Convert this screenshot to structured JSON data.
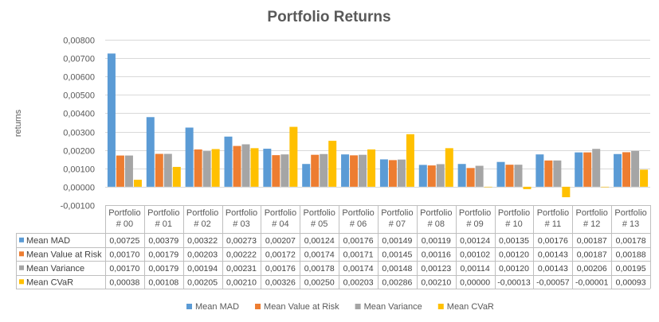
{
  "chart_data": {
    "type": "bar",
    "title": "Portfolio Returns",
    "ylabel": "returns",
    "ylim": [
      -0.001,
      0.008
    ],
    "ystep": 0.001,
    "yticks": [
      "-0,00100",
      "0,00000",
      "0,00100",
      "0,00200",
      "0,00300",
      "0,00400",
      "0,00500",
      "0,00600",
      "0,00700",
      "0,00800"
    ],
    "grid": true,
    "legend_position": "bottom",
    "has_data_table": true,
    "categories": [
      [
        "Portfolio",
        "# 00"
      ],
      [
        "Portfolio",
        "# 01"
      ],
      [
        "Portfolio",
        "# 02"
      ],
      [
        "Portfolio",
        "# 03"
      ],
      [
        "Portfolio",
        "# 04"
      ],
      [
        "Portfolio",
        "# 05"
      ],
      [
        "Portfolio",
        "# 06"
      ],
      [
        "Portfolio",
        "# 07"
      ],
      [
        "Portfolio",
        "# 08"
      ],
      [
        "Portfolio",
        "# 09"
      ],
      [
        "Portfolio",
        "# 10"
      ],
      [
        "Portfolio",
        "# 11"
      ],
      [
        "Portfolio",
        "# 12"
      ],
      [
        "Portfolio",
        "# 13"
      ]
    ],
    "series": [
      {
        "name": "Mean MAD",
        "color": "#5B9BD5",
        "values": [
          0.00725,
          0.00379,
          0.00322,
          0.00273,
          0.00207,
          0.00124,
          0.00176,
          0.00149,
          0.00119,
          0.00124,
          0.00135,
          0.00176,
          0.00187,
          0.00178
        ],
        "labels": [
          "0,00725",
          "0,00379",
          "0,00322",
          "0,00273",
          "0,00207",
          "0,00124",
          "0,00176",
          "0,00149",
          "0,00119",
          "0,00124",
          "0,00135",
          "0,00176",
          "0,00187",
          "0,00178"
        ]
      },
      {
        "name": "Mean Value at Risk",
        "color": "#ED7D31",
        "values": [
          0.0017,
          0.00179,
          0.00203,
          0.00222,
          0.00172,
          0.00174,
          0.00171,
          0.00145,
          0.00116,
          0.00102,
          0.0012,
          0.00143,
          0.00187,
          0.00188
        ],
        "labels": [
          "0,00170",
          "0,00179",
          "0,00203",
          "0,00222",
          "0,00172",
          "0,00174",
          "0,00171",
          "0,00145",
          "0,00116",
          "0,00102",
          "0,00120",
          "0,00143",
          "0,00187",
          "0,00188"
        ]
      },
      {
        "name": "Mean Variance",
        "color": "#A5A5A5",
        "values": [
          0.0017,
          0.00179,
          0.00194,
          0.00231,
          0.00176,
          0.00178,
          0.00174,
          0.00148,
          0.00123,
          0.00114,
          0.0012,
          0.00143,
          0.00206,
          0.00195
        ],
        "labels": [
          "0,00170",
          "0,00179",
          "0,00194",
          "0,00231",
          "0,00176",
          "0,00178",
          "0,00174",
          "0,00148",
          "0,00123",
          "0,00114",
          "0,00120",
          "0,00143",
          "0,00206",
          "0,00195"
        ]
      },
      {
        "name": "Mean CVaR",
        "color": "#FFC000",
        "values": [
          0.00038,
          0.00108,
          0.00205,
          0.0021,
          0.00326,
          0.0025,
          0.00203,
          0.00286,
          0.0021,
          0.0,
          -0.00013,
          -0.00057,
          -1e-05,
          0.00093
        ],
        "labels": [
          "0,00038",
          "0,00108",
          "0,00205",
          "0,00210",
          "0,00326",
          "0,00250",
          "0,00203",
          "0,00286",
          "0,00210",
          "0,00000",
          "-0,00013",
          "-0,00057",
          "-0,00001",
          "0,00093"
        ]
      }
    ]
  }
}
